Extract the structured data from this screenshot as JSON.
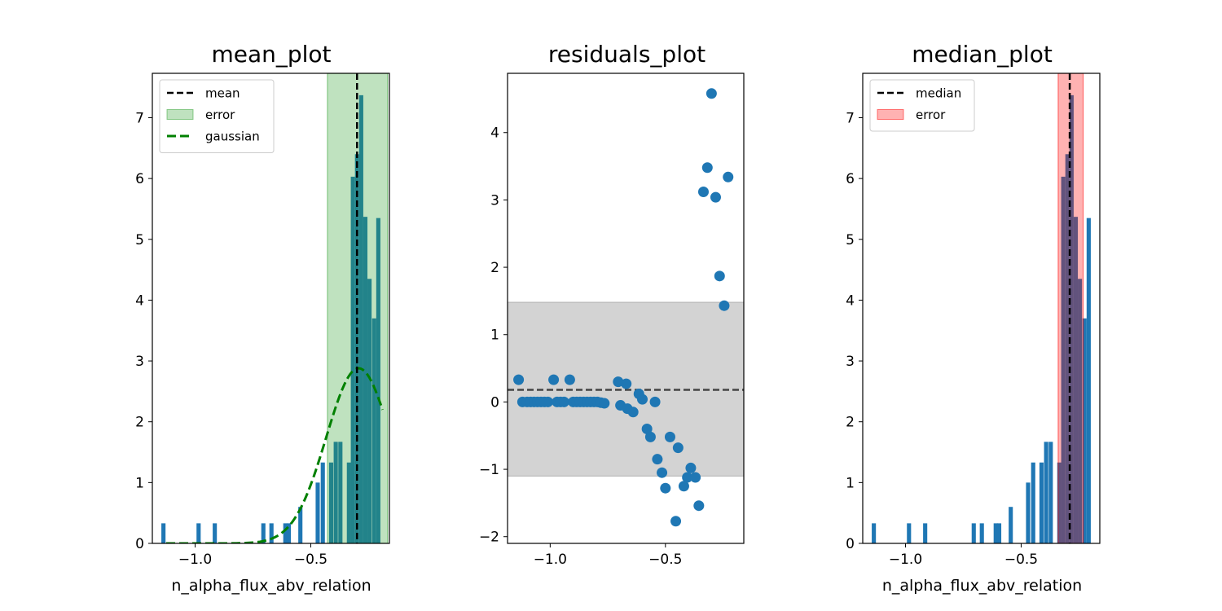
{
  "chart_data": [
    {
      "type": "bar",
      "title": "mean_plot",
      "xlabel": "n_alpha_flux_abv_relation",
      "ylabel": "",
      "xlim": [
        -1.185,
        -0.16
      ],
      "ylim": [
        0,
        7.73
      ],
      "xticks": [
        -1.0,
        -0.5
      ],
      "xtick_labels": [
        "−1.0",
        "−0.5"
      ],
      "yticks": [
        0,
        1,
        2,
        3,
        4,
        5,
        6,
        7
      ],
      "ytick_labels": [
        "0",
        "1",
        "2",
        "3",
        "4",
        "5",
        "6",
        "7"
      ],
      "histogram": {
        "color": "#1f77b4",
        "bin_width": 0.018,
        "bins": [
          {
            "x": -1.137,
            "h": 0.33
          },
          {
            "x": -0.985,
            "h": 0.33
          },
          {
            "x": -0.915,
            "h": 0.33
          },
          {
            "x": -0.705,
            "h": 0.33
          },
          {
            "x": -0.67,
            "h": 0.33
          },
          {
            "x": -0.61,
            "h": 0.33
          },
          {
            "x": -0.595,
            "h": 0.33
          },
          {
            "x": -0.545,
            "h": 0.6
          },
          {
            "x": -0.47,
            "h": 1.0
          },
          {
            "x": -0.448,
            "h": 1.33
          },
          {
            "x": -0.412,
            "h": 1.33
          },
          {
            "x": -0.392,
            "h": 1.67
          },
          {
            "x": -0.372,
            "h": 1.67
          },
          {
            "x": -0.335,
            "h": 1.33
          },
          {
            "x": -0.318,
            "h": 6.03
          },
          {
            "x": -0.3,
            "h": 6.4
          },
          {
            "x": -0.282,
            "h": 7.37
          },
          {
            "x": -0.264,
            "h": 5.37
          },
          {
            "x": -0.246,
            "h": 4.35
          },
          {
            "x": -0.226,
            "h": 3.7
          },
          {
            "x": -0.208,
            "h": 5.35
          }
        ]
      },
      "vline": {
        "x": -0.3,
        "label": "mean",
        "color": "#000000"
      },
      "band": {
        "x0": -0.428,
        "x1": -0.168,
        "label": "error",
        "color": "#2ca02c"
      },
      "gaussian": {
        "label": "gaussian",
        "color": "#008000",
        "mu": -0.293,
        "sigma": 0.14,
        "amp": 2.88,
        "x0": -1.125,
        "x1": -0.19
      },
      "legend": [
        "mean",
        "error",
        "gaussian"
      ],
      "legend_position": "upper-left"
    },
    {
      "type": "scatter",
      "title": "residuals_plot",
      "xlabel": "",
      "ylabel": "",
      "xlim": [
        -1.185,
        -0.16
      ],
      "ylim": [
        -2.1,
        4.88
      ],
      "xticks": [
        -1.0,
        -0.5
      ],
      "xtick_labels": [
        "−1.0",
        "−0.5"
      ],
      "yticks": [
        -2,
        -1,
        0,
        1,
        2,
        3,
        4
      ],
      "ytick_labels": [
        "−2",
        "−1",
        "0",
        "1",
        "2",
        "3",
        "4"
      ],
      "points_color": "#1f77b4",
      "points": [
        [
          -1.137,
          0.33
        ],
        [
          -1.12,
          0.0
        ],
        [
          -1.1,
          0.0
        ],
        [
          -1.085,
          0.0
        ],
        [
          -1.07,
          0.0
        ],
        [
          -1.055,
          0.0
        ],
        [
          -1.04,
          0.0
        ],
        [
          -1.025,
          0.0
        ],
        [
          -1.01,
          0.0
        ],
        [
          -0.985,
          0.33
        ],
        [
          -0.97,
          0.0
        ],
        [
          -0.955,
          0.0
        ],
        [
          -0.94,
          0.0
        ],
        [
          -0.915,
          0.33
        ],
        [
          -0.9,
          0.0
        ],
        [
          -0.885,
          0.0
        ],
        [
          -0.87,
          0.0
        ],
        [
          -0.855,
          0.0
        ],
        [
          -0.84,
          0.0
        ],
        [
          -0.825,
          0.0
        ],
        [
          -0.81,
          0.0
        ],
        [
          -0.795,
          0.0
        ],
        [
          -0.78,
          -0.01
        ],
        [
          -0.765,
          -0.02
        ],
        [
          -0.705,
          0.3
        ],
        [
          -0.695,
          -0.05
        ],
        [
          -0.67,
          0.27
        ],
        [
          -0.665,
          -0.1
        ],
        [
          -0.64,
          -0.15
        ],
        [
          -0.615,
          0.12
        ],
        [
          -0.6,
          0.04
        ],
        [
          -0.58,
          -0.4
        ],
        [
          -0.565,
          -0.52
        ],
        [
          -0.545,
          0.0
        ],
        [
          -0.535,
          -0.85
        ],
        [
          -0.515,
          -1.05
        ],
        [
          -0.5,
          -1.28
        ],
        [
          -0.48,
          -0.52
        ],
        [
          -0.455,
          -1.77
        ],
        [
          -0.445,
          -0.68
        ],
        [
          -0.42,
          -1.25
        ],
        [
          -0.405,
          -1.12
        ],
        [
          -0.39,
          -0.98
        ],
        [
          -0.37,
          -1.12
        ],
        [
          -0.355,
          -1.54
        ],
        [
          -0.335,
          3.12
        ],
        [
          -0.318,
          3.48
        ],
        [
          -0.3,
          4.58
        ],
        [
          -0.282,
          3.04
        ],
        [
          -0.265,
          1.87
        ],
        [
          -0.245,
          1.43
        ],
        [
          -0.228,
          3.34
        ]
      ],
      "hline": {
        "y": 0.18,
        "color": "#444444"
      },
      "band": {
        "y0": -1.1,
        "y1": 1.48,
        "color": "#d3d3d3"
      }
    },
    {
      "type": "bar",
      "title": "median_plot",
      "xlabel": "n_alpha_flux_abv_relation",
      "ylabel": "",
      "xlim": [
        -1.185,
        -0.16
      ],
      "ylim": [
        0,
        7.73
      ],
      "xticks": [
        -1.0,
        -0.5
      ],
      "xtick_labels": [
        "−1.0",
        "−0.5"
      ],
      "yticks": [
        0,
        1,
        2,
        3,
        4,
        5,
        6,
        7
      ],
      "ytick_labels": [
        "0",
        "1",
        "2",
        "3",
        "4",
        "5",
        "6",
        "7"
      ],
      "histogram": {
        "color": "#1f77b4",
        "bin_width": 0.018,
        "bins": [
          {
            "x": -1.137,
            "h": 0.33
          },
          {
            "x": -0.985,
            "h": 0.33
          },
          {
            "x": -0.915,
            "h": 0.33
          },
          {
            "x": -0.705,
            "h": 0.33
          },
          {
            "x": -0.67,
            "h": 0.33
          },
          {
            "x": -0.61,
            "h": 0.33
          },
          {
            "x": -0.595,
            "h": 0.33
          },
          {
            "x": -0.545,
            "h": 0.6
          },
          {
            "x": -0.47,
            "h": 1.0
          },
          {
            "x": -0.448,
            "h": 1.33
          },
          {
            "x": -0.412,
            "h": 1.33
          },
          {
            "x": -0.392,
            "h": 1.67
          },
          {
            "x": -0.372,
            "h": 1.67
          },
          {
            "x": -0.335,
            "h": 1.33
          },
          {
            "x": -0.318,
            "h": 6.03
          },
          {
            "x": -0.3,
            "h": 6.4
          },
          {
            "x": -0.282,
            "h": 7.37
          },
          {
            "x": -0.264,
            "h": 5.37
          },
          {
            "x": -0.246,
            "h": 4.35
          },
          {
            "x": -0.226,
            "h": 3.7
          },
          {
            "x": -0.208,
            "h": 5.35
          }
        ]
      },
      "vline": {
        "x": -0.29,
        "label": "median",
        "color": "#000000"
      },
      "band": {
        "x0": -0.34,
        "x1": -0.232,
        "label": "error",
        "color": "#ff0000"
      },
      "legend": [
        "median",
        "error"
      ],
      "legend_position": "upper-left"
    }
  ]
}
